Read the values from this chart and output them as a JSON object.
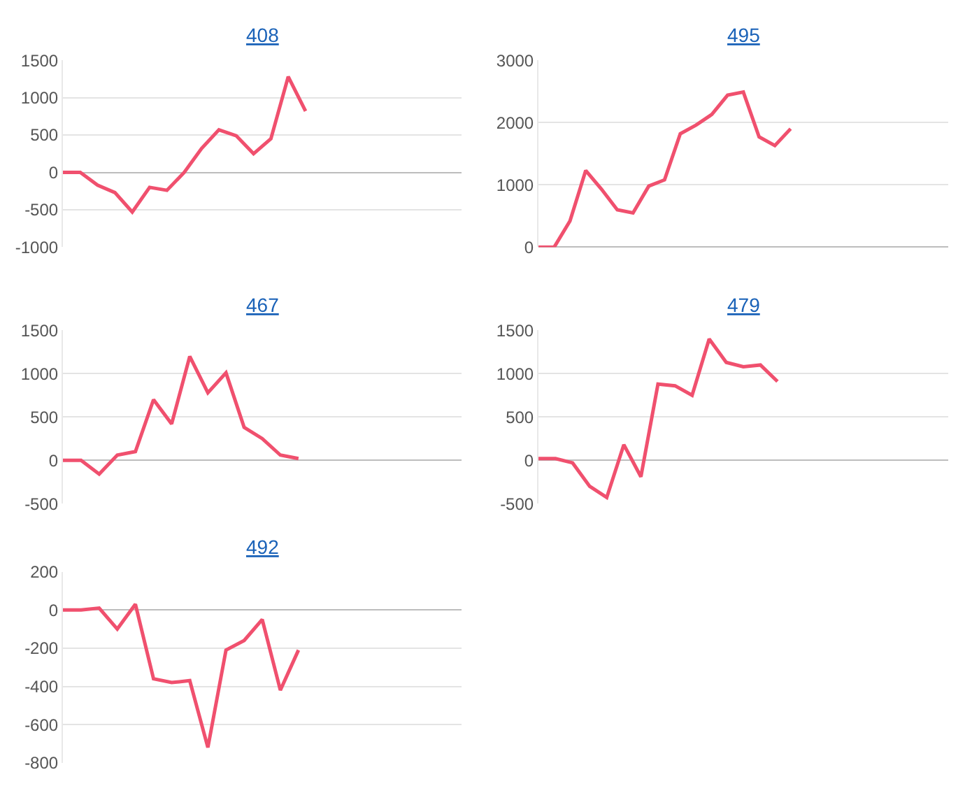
{
  "chart_data": [
    {
      "type": "line",
      "title": "408",
      "categories": [
        null,
        null,
        null,
        null,
        null,
        null,
        null,
        null,
        null,
        null,
        null,
        null,
        null,
        null,
        null,
        null,
        null,
        null,
        null,
        null,
        null,
        null,
        null,
        null
      ],
      "values": [
        0,
        0,
        -170,
        -270,
        -530,
        -200,
        -240,
        0,
        320,
        570,
        490,
        250,
        450,
        1280,
        820,
        null,
        null,
        null,
        null,
        null,
        null,
        null,
        null,
        null
      ],
      "color": "#f0506e",
      "ylim": [
        -1000,
        1500
      ],
      "yticks": [
        -1000,
        -500,
        0,
        500,
        1000,
        1500
      ],
      "grid": "y",
      "tick_labels": "y",
      "marker": "none",
      "line_style": "solid"
    },
    {
      "type": "line",
      "title": "495",
      "categories": [
        null,
        null,
        null,
        null,
        null,
        null,
        null,
        null,
        null,
        null,
        null,
        null,
        null,
        null,
        null,
        null,
        null,
        null,
        null,
        null,
        null,
        null,
        null,
        null,
        null,
        null,
        null
      ],
      "values": [
        0,
        0,
        420,
        1230,
        930,
        600,
        550,
        980,
        1080,
        1820,
        1960,
        2130,
        2440,
        2490,
        1770,
        1630,
        1900,
        null,
        null,
        null,
        null,
        null,
        null,
        null,
        null,
        null,
        null
      ],
      "color": "#f0506e",
      "ylim": [
        0,
        3000
      ],
      "yticks": [
        0,
        1000,
        2000,
        3000
      ],
      "grid": "y",
      "tick_labels": "y",
      "marker": "none",
      "line_style": "solid"
    },
    {
      "type": "line",
      "title": "467",
      "categories": [
        null,
        null,
        null,
        null,
        null,
        null,
        null,
        null,
        null,
        null,
        null,
        null,
        null,
        null,
        null,
        null,
        null,
        null,
        null,
        null,
        null,
        null,
        null
      ],
      "values": [
        0,
        0,
        -160,
        60,
        100,
        700,
        420,
        1200,
        780,
        1010,
        380,
        250,
        60,
        20,
        null,
        null,
        null,
        null,
        null,
        null,
        null,
        null,
        null
      ],
      "color": "#f0506e",
      "ylim": [
        -500,
        1500
      ],
      "yticks": [
        -500,
        0,
        500,
        1000,
        1500
      ],
      "grid": "y",
      "tick_labels": "y",
      "marker": "none",
      "line_style": "solid"
    },
    {
      "type": "line",
      "title": "479",
      "categories": [
        null,
        null,
        null,
        null,
        null,
        null,
        null,
        null,
        null,
        null,
        null,
        null,
        null,
        null,
        null,
        null,
        null,
        null,
        null,
        null,
        null,
        null,
        null,
        null,
        null
      ],
      "values": [
        20,
        20,
        -30,
        -300,
        -430,
        180,
        -190,
        880,
        860,
        750,
        1400,
        1130,
        1080,
        1100,
        910,
        null,
        null,
        null,
        null,
        null,
        null,
        null,
        null,
        null,
        null
      ],
      "color": "#f0506e",
      "ylim": [
        -500,
        1500
      ],
      "yticks": [
        -500,
        0,
        500,
        1000,
        1500
      ],
      "grid": "y",
      "tick_labels": "y",
      "marker": "none",
      "line_style": "solid"
    },
    {
      "type": "line",
      "title": "492",
      "categories": [
        null,
        null,
        null,
        null,
        null,
        null,
        null,
        null,
        null,
        null,
        null,
        null,
        null,
        null,
        null,
        null,
        null,
        null,
        null,
        null,
        null,
        null,
        null
      ],
      "values": [
        0,
        0,
        10,
        -100,
        30,
        -360,
        -380,
        -370,
        -720,
        -210,
        -160,
        -50,
        -420,
        -210,
        null,
        null,
        null,
        null,
        null,
        null,
        null,
        null,
        null
      ],
      "color": "#f0506e",
      "ylim": [
        -800,
        200
      ],
      "yticks": [
        -800,
        -600,
        -400,
        -200,
        0,
        200
      ],
      "grid": "y",
      "tick_labels": "y",
      "marker": "none",
      "line_style": "solid"
    }
  ]
}
